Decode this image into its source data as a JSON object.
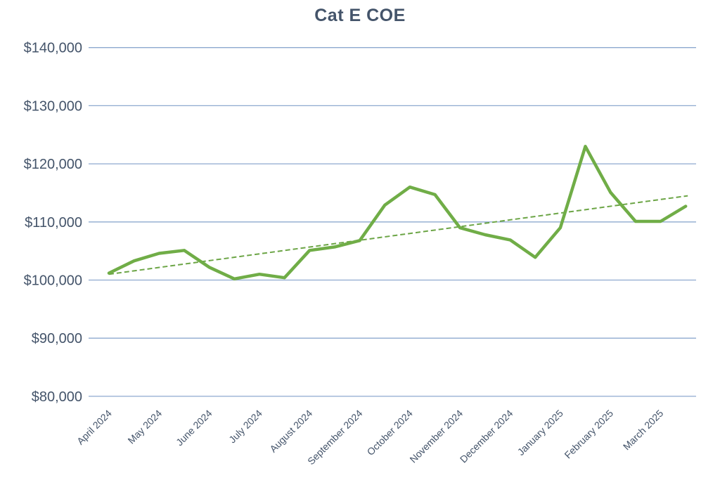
{
  "title": "Cat E COE",
  "colors": {
    "series_line": "#70AD47",
    "trendline": "#6CA546",
    "gridline": "#8EA9CF",
    "axis_text": "#44546A",
    "title_text": "#44546A",
    "background": "#FFFFFF"
  },
  "chart_data": {
    "type": "line",
    "title": "Cat E COE",
    "categories": [
      "April 2024",
      "May 2024",
      "June 2024",
      "July 2024",
      "August 2024",
      "September 2024",
      "October 2024",
      "November 2024",
      "December 2024",
      "January 2025",
      "February 2025",
      "March 2025"
    ],
    "points_per_category": 2,
    "series": [
      {
        "name": "Cat E COE",
        "values": [
          101200,
          103300,
          104600,
          105100,
          102200,
          100200,
          101000,
          100400,
          105100,
          105700,
          106800,
          112900,
          116000,
          114700,
          109000,
          107800,
          106900,
          103900,
          109000,
          123000,
          115100,
          110100,
          110100,
          112700
        ]
      }
    ],
    "trendline": {
      "type": "linear",
      "style": "dashed",
      "start_value": 101000,
      "end_value": 114500
    },
    "y_axis": {
      "min": 80000,
      "max": 140000,
      "step": 10000,
      "tick_labels": [
        "$140,000",
        "$130,000",
        "$120,000",
        "$110,000",
        "$100,000",
        "$90,000",
        "$80,000"
      ]
    },
    "x_axis": {
      "label_rotation_deg": -45
    },
    "grid": true,
    "legend": false
  }
}
